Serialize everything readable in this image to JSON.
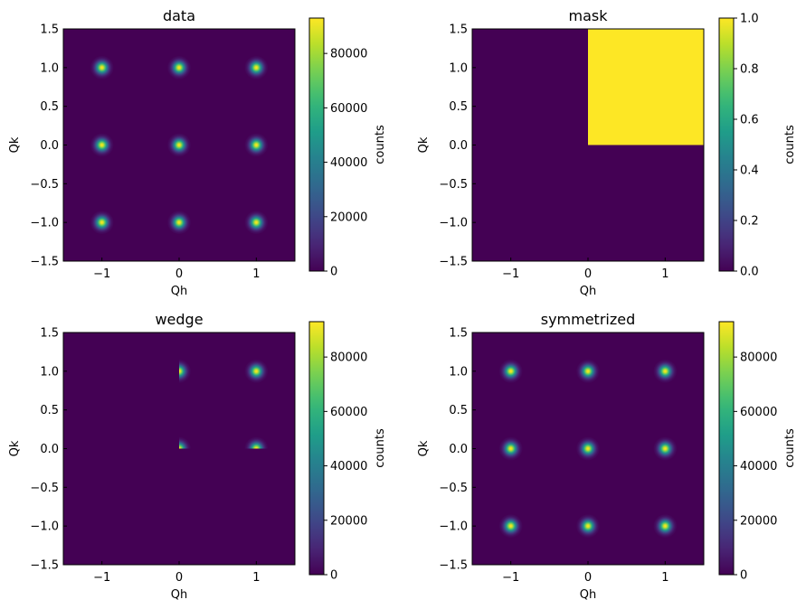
{
  "chart_data": [
    {
      "type": "heatmap",
      "title": "data",
      "xlabel": "Qh",
      "ylabel": "Qk",
      "xlim": [
        -1.5,
        1.5
      ],
      "ylim": [
        -1.5,
        1.5
      ],
      "xticks": [
        -1,
        0,
        1
      ],
      "xtick_labels": [
        "−1",
        "0",
        "1"
      ],
      "yticks": [
        -1.5,
        -1.0,
        -0.5,
        0.0,
        0.5,
        1.0,
        1.5
      ],
      "ytick_labels": [
        "−1.5",
        "−1.0",
        "−0.5",
        "0.0",
        "0.5",
        "1.0",
        "1.5"
      ],
      "colorbar": {
        "label": "counts",
        "vmin": 0,
        "vmax": 93000,
        "ticks": [
          0,
          20000,
          40000,
          60000,
          80000
        ],
        "tick_labels": [
          "0",
          "20000",
          "40000",
          "60000",
          "80000"
        ]
      },
      "peaks": [
        [
          -1,
          1
        ],
        [
          0,
          1
        ],
        [
          1,
          1
        ],
        [
          -1,
          0
        ],
        [
          0,
          0
        ],
        [
          1,
          0
        ],
        [
          -1,
          -1
        ],
        [
          0,
          -1
        ],
        [
          1,
          -1
        ]
      ],
      "peak_amplitude": 93000,
      "peak_sigma": 0.05,
      "region": "all"
    },
    {
      "type": "heatmap",
      "title": "mask",
      "xlabel": "Qh",
      "ylabel": "Qk",
      "xlim": [
        -1.5,
        1.5
      ],
      "ylim": [
        -1.5,
        1.5
      ],
      "xticks": [
        -1,
        0,
        1
      ],
      "xtick_labels": [
        "−1",
        "0",
        "1"
      ],
      "yticks": [
        -1.5,
        -1.0,
        -0.5,
        0.0,
        0.5,
        1.0,
        1.5
      ],
      "ytick_labels": [
        "−1.5",
        "−1.0",
        "−0.5",
        "0.0",
        "0.5",
        "1.0",
        "1.5"
      ],
      "colorbar": {
        "label": "counts",
        "vmin": 0,
        "vmax": 1,
        "ticks": [
          0,
          0.2,
          0.4,
          0.6,
          0.8,
          1.0
        ],
        "tick_labels": [
          "0.0",
          "0.2",
          "0.4",
          "0.6",
          "0.8",
          "1.0"
        ]
      },
      "mask_region": {
        "qh": [
          0,
          1.5
        ],
        "qk": [
          0,
          1.5
        ],
        "value": 1
      },
      "background_value": 0
    },
    {
      "type": "heatmap",
      "title": "wedge",
      "xlabel": "Qh",
      "ylabel": "Qk",
      "xlim": [
        -1.5,
        1.5
      ],
      "ylim": [
        -1.5,
        1.5
      ],
      "xticks": [
        -1,
        0,
        1
      ],
      "xtick_labels": [
        "−1",
        "0",
        "1"
      ],
      "yticks": [
        -1.5,
        -1.0,
        -0.5,
        0.0,
        0.5,
        1.0,
        1.5
      ],
      "ytick_labels": [
        "−1.5",
        "−1.0",
        "−0.5",
        "0.0",
        "0.5",
        "1.0",
        "1.5"
      ],
      "colorbar": {
        "label": "counts",
        "vmin": 0,
        "vmax": 93000,
        "ticks": [
          0,
          20000,
          40000,
          60000,
          80000
        ],
        "tick_labels": [
          "0",
          "20000",
          "40000",
          "60000",
          "80000"
        ]
      },
      "peaks": [
        [
          0,
          1
        ],
        [
          1,
          1
        ],
        [
          0,
          0
        ],
        [
          1,
          0
        ]
      ],
      "peak_amplitude": 93000,
      "peak_sigma": 0.05,
      "region": "qh>=0,qk>=0"
    },
    {
      "type": "heatmap",
      "title": "symmetrized",
      "xlabel": "Qh",
      "ylabel": "Qk",
      "xlim": [
        -1.5,
        1.5
      ],
      "ylim": [
        -1.5,
        1.5
      ],
      "xticks": [
        -1,
        0,
        1
      ],
      "xtick_labels": [
        "−1",
        "0",
        "1"
      ],
      "yticks": [
        -1.5,
        -1.0,
        -0.5,
        0.0,
        0.5,
        1.0,
        1.5
      ],
      "ytick_labels": [
        "−1.5",
        "−1.0",
        "−0.5",
        "0.0",
        "0.5",
        "1.0",
        "1.5"
      ],
      "colorbar": {
        "label": "counts",
        "vmin": 0,
        "vmax": 93000,
        "ticks": [
          0,
          20000,
          40000,
          60000,
          80000
        ],
        "tick_labels": [
          "0",
          "20000",
          "40000",
          "60000",
          "80000"
        ]
      },
      "peaks": [
        [
          -1,
          1
        ],
        [
          0,
          1
        ],
        [
          1,
          1
        ],
        [
          -1,
          0
        ],
        [
          0,
          0
        ],
        [
          1,
          0
        ],
        [
          -1,
          -1
        ],
        [
          0,
          -1
        ],
        [
          1,
          -1
        ]
      ],
      "peak_amplitude": 93000,
      "peak_sigma": 0.05,
      "region": "all"
    }
  ],
  "colormap": "viridis"
}
